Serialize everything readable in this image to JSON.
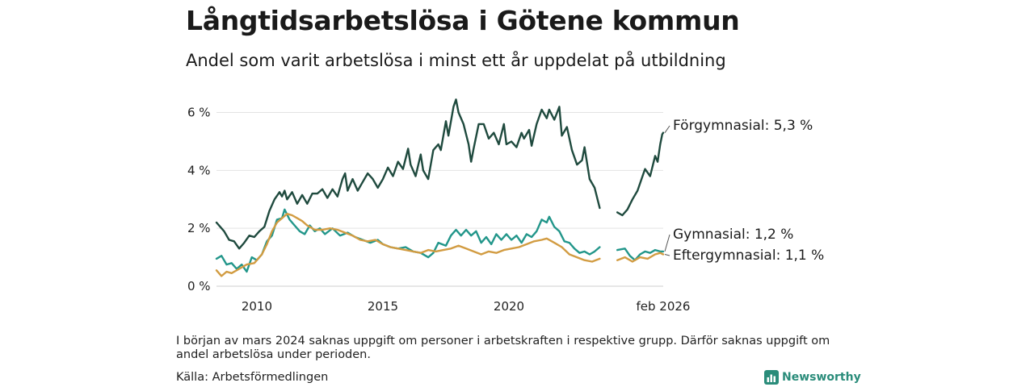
{
  "title": "Långtidsarbetslösa i Götene kommun",
  "subtitle": "Andel som varit arbetslösa i minst ett år uppdelat på utbildning",
  "note": "I början av mars 2024 saknas uppgift om personer i arbetskraften i respektive grupp. Därför saknas uppgift om andel arbetslösa under perioden.",
  "source": "Källa: Arbetsförmedlingen",
  "brand": "Newsworthy",
  "chart_data": {
    "type": "line",
    "title": "Långtidsarbetslösa i Götene kommun",
    "subtitle": "Andel som varit arbetslösa i minst ett år uppdelat på utbildning",
    "xlabel": "",
    "ylabel": "",
    "x_range": [
      2008.4,
      2026.12
    ],
    "ylim": [
      0,
      6.6
    ],
    "grid": true,
    "y_ticks": [
      {
        "value": 0,
        "label": "0 %"
      },
      {
        "value": 2,
        "label": "2 %"
      },
      {
        "value": 4,
        "label": "4 %"
      },
      {
        "value": 6,
        "label": "6 %"
      }
    ],
    "x_ticks": [
      {
        "value": 2010,
        "label": "2010"
      },
      {
        "value": 2015,
        "label": "2015"
      },
      {
        "value": 2020,
        "label": "2020"
      },
      {
        "value": 2026.12,
        "label": "feb 2026"
      }
    ],
    "series": [
      {
        "name": "Förgymnasial",
        "end_label": "Förgymnasial: 5,3 %",
        "color": "#1f4a3e",
        "points": [
          [
            2008.4,
            2.2
          ],
          [
            2008.7,
            1.9
          ],
          [
            2008.9,
            1.6
          ],
          [
            2009.1,
            1.55
          ],
          [
            2009.3,
            1.3
          ],
          [
            2009.5,
            1.5
          ],
          [
            2009.7,
            1.75
          ],
          [
            2009.9,
            1.7
          ],
          [
            2010.1,
            1.9
          ],
          [
            2010.3,
            2.05
          ],
          [
            2010.5,
            2.6
          ],
          [
            2010.7,
            3.0
          ],
          [
            2010.9,
            3.25
          ],
          [
            2011.0,
            3.1
          ],
          [
            2011.1,
            3.3
          ],
          [
            2011.2,
            3.0
          ],
          [
            2011.4,
            3.25
          ],
          [
            2011.6,
            2.85
          ],
          [
            2011.8,
            3.15
          ],
          [
            2012.0,
            2.85
          ],
          [
            2012.2,
            3.2
          ],
          [
            2012.4,
            3.2
          ],
          [
            2012.6,
            3.35
          ],
          [
            2012.8,
            3.05
          ],
          [
            2013.0,
            3.35
          ],
          [
            2013.2,
            3.1
          ],
          [
            2013.4,
            3.7
          ],
          [
            2013.5,
            3.9
          ],
          [
            2013.6,
            3.3
          ],
          [
            2013.8,
            3.7
          ],
          [
            2014.0,
            3.3
          ],
          [
            2014.2,
            3.6
          ],
          [
            2014.4,
            3.9
          ],
          [
            2014.6,
            3.7
          ],
          [
            2014.8,
            3.4
          ],
          [
            2015.0,
            3.7
          ],
          [
            2015.2,
            4.1
          ],
          [
            2015.4,
            3.8
          ],
          [
            2015.6,
            4.3
          ],
          [
            2015.8,
            4.05
          ],
          [
            2016.0,
            4.75
          ],
          [
            2016.1,
            4.2
          ],
          [
            2016.3,
            3.8
          ],
          [
            2016.5,
            4.55
          ],
          [
            2016.6,
            4.0
          ],
          [
            2016.8,
            3.7
          ],
          [
            2017.0,
            4.7
          ],
          [
            2017.2,
            4.9
          ],
          [
            2017.3,
            4.7
          ],
          [
            2017.5,
            5.7
          ],
          [
            2017.6,
            5.2
          ],
          [
            2017.8,
            6.2
          ],
          [
            2017.9,
            6.45
          ],
          [
            2018.0,
            6.0
          ],
          [
            2018.2,
            5.6
          ],
          [
            2018.4,
            4.9
          ],
          [
            2018.5,
            4.3
          ],
          [
            2018.6,
            4.75
          ],
          [
            2018.8,
            5.6
          ],
          [
            2019.0,
            5.6
          ],
          [
            2019.2,
            5.1
          ],
          [
            2019.4,
            5.3
          ],
          [
            2019.6,
            4.9
          ],
          [
            2019.8,
            5.6
          ],
          [
            2019.9,
            4.9
          ],
          [
            2020.1,
            5.0
          ],
          [
            2020.3,
            4.8
          ],
          [
            2020.5,
            5.3
          ],
          [
            2020.6,
            5.1
          ],
          [
            2020.8,
            5.4
          ],
          [
            2020.9,
            4.85
          ],
          [
            2021.1,
            5.6
          ],
          [
            2021.3,
            6.1
          ],
          [
            2021.5,
            5.8
          ],
          [
            2021.6,
            6.1
          ],
          [
            2021.8,
            5.75
          ],
          [
            2022.0,
            6.2
          ],
          [
            2022.1,
            5.2
          ],
          [
            2022.3,
            5.5
          ],
          [
            2022.5,
            4.7
          ],
          [
            2022.7,
            4.2
          ],
          [
            2022.9,
            4.35
          ],
          [
            2023.0,
            4.8
          ],
          [
            2023.2,
            3.7
          ],
          [
            2023.4,
            3.4
          ],
          [
            2023.6,
            2.7
          ],
          [
            2023.65,
            null
          ],
          [
            2024.3,
            2.55
          ],
          [
            2024.5,
            2.45
          ],
          [
            2024.7,
            2.65
          ],
          [
            2024.9,
            3.0
          ],
          [
            2025.1,
            3.3
          ],
          [
            2025.3,
            3.8
          ],
          [
            2025.4,
            4.05
          ],
          [
            2025.6,
            3.8
          ],
          [
            2025.8,
            4.5
          ],
          [
            2025.9,
            4.3
          ],
          [
            2026.0,
            4.9
          ],
          [
            2026.08,
            5.25
          ],
          [
            2026.12,
            5.3
          ]
        ]
      },
      {
        "name": "Gymnasial",
        "end_label": "Gymnasial: 1,2 %",
        "color": "#22968a",
        "points": [
          [
            2008.4,
            0.95
          ],
          [
            2008.6,
            1.05
          ],
          [
            2008.8,
            0.75
          ],
          [
            2009.0,
            0.8
          ],
          [
            2009.2,
            0.6
          ],
          [
            2009.4,
            0.75
          ],
          [
            2009.6,
            0.5
          ],
          [
            2009.8,
            1.0
          ],
          [
            2010.0,
            0.9
          ],
          [
            2010.2,
            1.1
          ],
          [
            2010.4,
            1.55
          ],
          [
            2010.6,
            1.75
          ],
          [
            2010.8,
            2.3
          ],
          [
            2011.0,
            2.35
          ],
          [
            2011.1,
            2.65
          ],
          [
            2011.3,
            2.3
          ],
          [
            2011.5,
            2.1
          ],
          [
            2011.7,
            1.9
          ],
          [
            2011.9,
            1.8
          ],
          [
            2012.1,
            2.1
          ],
          [
            2012.3,
            1.9
          ],
          [
            2012.5,
            2.0
          ],
          [
            2012.7,
            1.8
          ],
          [
            2013.0,
            2.0
          ],
          [
            2013.3,
            1.75
          ],
          [
            2013.6,
            1.85
          ],
          [
            2013.9,
            1.7
          ],
          [
            2014.2,
            1.6
          ],
          [
            2014.5,
            1.5
          ],
          [
            2014.8,
            1.6
          ],
          [
            2015.0,
            1.45
          ],
          [
            2015.3,
            1.35
          ],
          [
            2015.6,
            1.3
          ],
          [
            2015.9,
            1.35
          ],
          [
            2016.2,
            1.2
          ],
          [
            2016.5,
            1.15
          ],
          [
            2016.8,
            1.0
          ],
          [
            2017.0,
            1.15
          ],
          [
            2017.2,
            1.5
          ],
          [
            2017.5,
            1.4
          ],
          [
            2017.7,
            1.75
          ],
          [
            2017.9,
            1.95
          ],
          [
            2018.1,
            1.75
          ],
          [
            2018.3,
            1.95
          ],
          [
            2018.5,
            1.75
          ],
          [
            2018.7,
            1.9
          ],
          [
            2018.9,
            1.5
          ],
          [
            2019.1,
            1.7
          ],
          [
            2019.3,
            1.45
          ],
          [
            2019.5,
            1.8
          ],
          [
            2019.7,
            1.6
          ],
          [
            2019.9,
            1.8
          ],
          [
            2020.1,
            1.6
          ],
          [
            2020.3,
            1.75
          ],
          [
            2020.5,
            1.5
          ],
          [
            2020.7,
            1.8
          ],
          [
            2020.9,
            1.7
          ],
          [
            2021.1,
            1.9
          ],
          [
            2021.3,
            2.3
          ],
          [
            2021.5,
            2.2
          ],
          [
            2021.6,
            2.4
          ],
          [
            2021.8,
            2.05
          ],
          [
            2022.0,
            1.9
          ],
          [
            2022.2,
            1.55
          ],
          [
            2022.4,
            1.5
          ],
          [
            2022.6,
            1.3
          ],
          [
            2022.8,
            1.15
          ],
          [
            2023.0,
            1.2
          ],
          [
            2023.2,
            1.1
          ],
          [
            2023.4,
            1.2
          ],
          [
            2023.6,
            1.35
          ],
          [
            2023.65,
            null
          ],
          [
            2024.3,
            1.25
          ],
          [
            2024.6,
            1.3
          ],
          [
            2024.8,
            1.05
          ],
          [
            2025.0,
            0.9
          ],
          [
            2025.2,
            1.1
          ],
          [
            2025.4,
            1.2
          ],
          [
            2025.6,
            1.15
          ],
          [
            2025.8,
            1.25
          ],
          [
            2026.0,
            1.2
          ],
          [
            2026.12,
            1.2
          ]
        ]
      },
      {
        "name": "Eftergymnasial",
        "end_label": "Eftergymnasial: 1,1 %",
        "color": "#d29c42",
        "points": [
          [
            2008.4,
            0.55
          ],
          [
            2008.6,
            0.35
          ],
          [
            2008.8,
            0.5
          ],
          [
            2009.0,
            0.45
          ],
          [
            2009.3,
            0.6
          ],
          [
            2009.6,
            0.75
          ],
          [
            2009.9,
            0.8
          ],
          [
            2010.2,
            1.1
          ],
          [
            2010.4,
            1.45
          ],
          [
            2010.6,
            1.9
          ],
          [
            2010.8,
            2.2
          ],
          [
            2011.0,
            2.35
          ],
          [
            2011.2,
            2.5
          ],
          [
            2011.4,
            2.45
          ],
          [
            2011.6,
            2.35
          ],
          [
            2011.8,
            2.25
          ],
          [
            2012.0,
            2.1
          ],
          [
            2012.3,
            1.95
          ],
          [
            2012.6,
            1.95
          ],
          [
            2012.9,
            2.0
          ],
          [
            2013.2,
            1.95
          ],
          [
            2013.5,
            1.85
          ],
          [
            2013.8,
            1.75
          ],
          [
            2014.1,
            1.6
          ],
          [
            2014.4,
            1.55
          ],
          [
            2014.7,
            1.6
          ],
          [
            2015.0,
            1.45
          ],
          [
            2015.3,
            1.35
          ],
          [
            2015.6,
            1.3
          ],
          [
            2015.9,
            1.25
          ],
          [
            2016.2,
            1.2
          ],
          [
            2016.5,
            1.15
          ],
          [
            2016.8,
            1.25
          ],
          [
            2017.1,
            1.2
          ],
          [
            2017.4,
            1.25
          ],
          [
            2017.7,
            1.3
          ],
          [
            2018.0,
            1.4
          ],
          [
            2018.3,
            1.3
          ],
          [
            2018.6,
            1.2
          ],
          [
            2018.9,
            1.1
          ],
          [
            2019.2,
            1.2
          ],
          [
            2019.5,
            1.15
          ],
          [
            2019.8,
            1.25
          ],
          [
            2020.1,
            1.3
          ],
          [
            2020.4,
            1.35
          ],
          [
            2020.7,
            1.45
          ],
          [
            2021.0,
            1.55
          ],
          [
            2021.3,
            1.6
          ],
          [
            2021.5,
            1.65
          ],
          [
            2021.8,
            1.5
          ],
          [
            2022.1,
            1.35
          ],
          [
            2022.4,
            1.1
          ],
          [
            2022.7,
            1.0
          ],
          [
            2023.0,
            0.9
          ],
          [
            2023.3,
            0.85
          ],
          [
            2023.6,
            0.95
          ],
          [
            2023.65,
            null
          ],
          [
            2024.3,
            0.9
          ],
          [
            2024.6,
            1.0
          ],
          [
            2024.9,
            0.85
          ],
          [
            2025.2,
            1.0
          ],
          [
            2025.5,
            0.95
          ],
          [
            2025.8,
            1.1
          ],
          [
            2026.0,
            1.15
          ],
          [
            2026.12,
            1.1
          ]
        ]
      }
    ]
  }
}
